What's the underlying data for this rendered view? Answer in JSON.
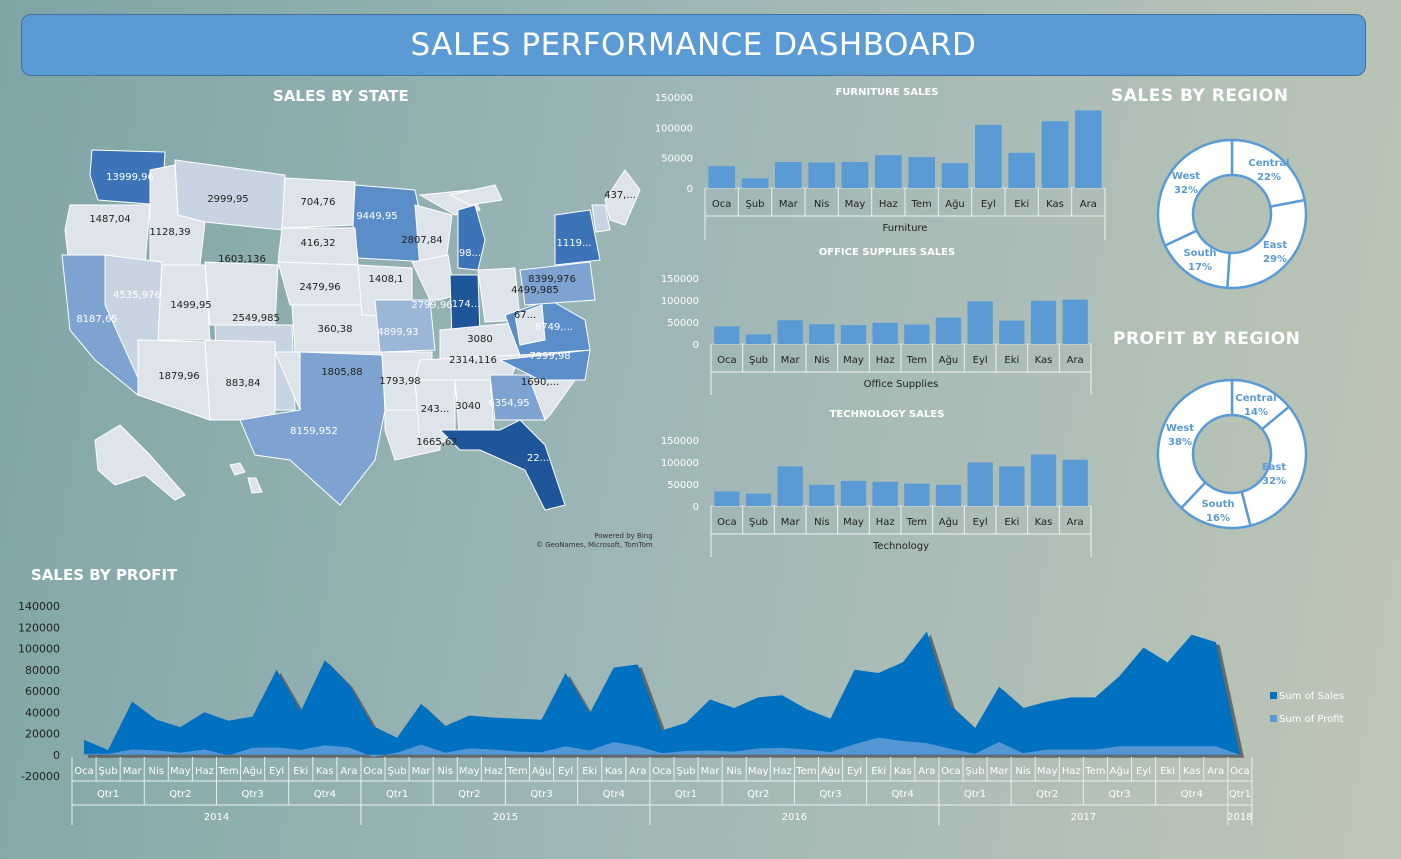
{
  "dashboard": {
    "title": "SALES PERFORMANCE DASHBOARD"
  },
  "map": {
    "title": "SALES BY STATE",
    "credit_line1": "Powered by Bing",
    "credit_line2": "© GeoNames, Microsoft, TomTom",
    "labels": [
      "13999,96",
      "1487,04",
      "1128,39",
      "2999,95",
      "704,76",
      "9449,95",
      "437,...",
      "416,32",
      "2807,84",
      "1119...",
      "98...",
      "1603,136",
      "8187,65",
      "4535,976",
      "2479,96",
      "1408,1",
      "4499,985",
      "8399,976",
      "1499,95",
      "2549,985",
      "2799,96",
      "174...",
      "4899,93",
      "360,38",
      "67...",
      "3080",
      "8749,...",
      "2314,116",
      "7999,98",
      "1879,96",
      "883,84",
      "1805,88",
      "1793,98",
      "1690,...",
      "8159,952",
      "243...",
      "3040",
      "6354,95",
      "1665,62",
      "22..."
    ]
  },
  "months": [
    "Oca",
    "Şub",
    "Mar",
    "Nis",
    "May",
    "Haz",
    "Tem",
    "Ağu",
    "Eyl",
    "Eki",
    "Kas",
    "Ara"
  ],
  "chart_data": [
    {
      "type": "bar",
      "title": "FURNITURE SALES",
      "xlabel": "Furniture",
      "categories": [
        "Oca",
        "Şub",
        "Mar",
        "Nis",
        "May",
        "Haz",
        "Tem",
        "Ağu",
        "Eyl",
        "Eki",
        "Kas",
        "Ara"
      ],
      "values": [
        36000,
        16000,
        43000,
        42000,
        43000,
        54000,
        51000,
        41000,
        104000,
        58000,
        110000,
        128000
      ],
      "ylim": [
        0,
        150000
      ],
      "yticks": [
        "0",
        "50000",
        "100000",
        "150000"
      ]
    },
    {
      "type": "bar",
      "title": "OFFICE SUPPLIES SALES",
      "xlabel": "Office Supplies",
      "categories": [
        "Oca",
        "Şub",
        "Mar",
        "Nis",
        "May",
        "Haz",
        "Tem",
        "Ağu",
        "Eyl",
        "Eki",
        "Kas",
        "Ara"
      ],
      "values": [
        40000,
        22000,
        54000,
        45000,
        43000,
        48000,
        44000,
        60000,
        97000,
        53000,
        98000,
        101000
      ],
      "ylim": [
        0,
        150000
      ],
      "yticks": [
        "0",
        "50000",
        "100000",
        "150000"
      ]
    },
    {
      "type": "bar",
      "title": "TECHNOLOGY SALES",
      "xlabel": "Technology",
      "categories": [
        "Oca",
        "Şub",
        "Mar",
        "Nis",
        "May",
        "Haz",
        "Tem",
        "Ağu",
        "Eyl",
        "Eki",
        "Kas",
        "Ara"
      ],
      "values": [
        33000,
        28000,
        90000,
        48000,
        57000,
        55000,
        51000,
        48000,
        99000,
        90000,
        117000,
        105000
      ],
      "ylim": [
        0,
        150000
      ],
      "yticks": [
        "0",
        "50000",
        "100000",
        "150000"
      ]
    },
    {
      "type": "pie",
      "title": "SALES BY REGION",
      "labels": [
        "Central",
        "East",
        "South",
        "West"
      ],
      "values": [
        22,
        29,
        17,
        32
      ],
      "percent_labels": [
        "22%",
        "29%",
        "17%",
        "32%"
      ]
    },
    {
      "type": "pie",
      "title": "PROFIT BY REGION",
      "labels": [
        "Central",
        "East",
        "South",
        "West"
      ],
      "values": [
        14,
        32,
        16,
        38
      ],
      "percent_labels": [
        "14%",
        "32%",
        "16%",
        "38%"
      ]
    },
    {
      "type": "area",
      "title": "SALES BY PROFIT",
      "series": [
        {
          "name": "Sum of Sales",
          "values": [
            14000,
            4500,
            50000,
            33000,
            26000,
            40000,
            32000,
            36000,
            80000,
            41000,
            89000,
            66000,
            27000,
            16000,
            48000,
            27000,
            37000,
            35000,
            34000,
            33000,
            77000,
            39000,
            82000,
            85000,
            23000,
            30000,
            52000,
            44000,
            54000,
            56000,
            43000,
            34000,
            80000,
            77000,
            87000,
            116000,
            46000,
            25000,
            64000,
            44000,
            50000,
            54000,
            54000,
            74000,
            101000,
            87000,
            113000,
            106000,
            1000
          ]
        },
        {
          "name": "Sum of Profit",
          "values": [
            1000,
            1000,
            5000,
            4000,
            2000,
            5000,
            -500,
            6500,
            7000,
            4500,
            9000,
            7000,
            -2000,
            2000,
            9500,
            2000,
            6000,
            5000,
            3000,
            2500,
            8000,
            4000,
            12000,
            8000,
            1500,
            3500,
            4000,
            3000,
            6000,
            6500,
            5000,
            2500,
            10000,
            16000,
            13000,
            11000,
            5500,
            1000,
            12000,
            1500,
            5000,
            5000,
            5000,
            8000,
            8000,
            8000,
            8000,
            8000,
            0
          ]
        }
      ],
      "ylim": [
        -20000,
        140000
      ],
      "yticks": [
        "-20000",
        "0",
        "20000",
        "40000",
        "60000",
        "80000",
        "100000",
        "120000",
        "140000"
      ],
      "x_months": [
        "Oca",
        "Şub",
        "Mar",
        "Nis",
        "May",
        "Haz",
        "Tem",
        "Ağu",
        "Eyl",
        "Eki",
        "Kas",
        "Ara",
        "Oca",
        "Şub",
        "Mar",
        "Nis",
        "May",
        "Haz",
        "Tem",
        "Ağu",
        "Eyl",
        "Eki",
        "Kas",
        "Ara",
        "Oca",
        "Şub",
        "Mar",
        "Nis",
        "May",
        "Haz",
        "Tem",
        "Ağu",
        "Eyl",
        "Eki",
        "Kas",
        "Ara",
        "Oca",
        "Şub",
        "Mar",
        "Nis",
        "May",
        "Haz",
        "Tem",
        "Ağu",
        "Eyl",
        "Eki",
        "Kas",
        "Ara",
        "Oca"
      ],
      "quarters": [
        "Qtr1",
        "Qtr2",
        "Qtr3",
        "Qtr4",
        "Qtr1",
        "Qtr2",
        "Qtr3",
        "Qtr4",
        "Qtr1",
        "Qtr2",
        "Qtr3",
        "Qtr4",
        "Qtr1",
        "Qtr2",
        "Qtr3",
        "Qtr4",
        "Qtr1"
      ],
      "years": [
        "2014",
        "2015",
        "2016",
        "2017",
        "2018"
      ],
      "legend": [
        "Sum of Sales",
        "Sum of Profit"
      ]
    }
  ],
  "colors": {
    "banner": "#5b9bd5",
    "bar": "#5b9bd5",
    "sales_area": "#0070c0",
    "profit_area": "#5b9bd5",
    "donut_fill": "#ffffff",
    "donut_stroke": "#5b9bd5"
  }
}
